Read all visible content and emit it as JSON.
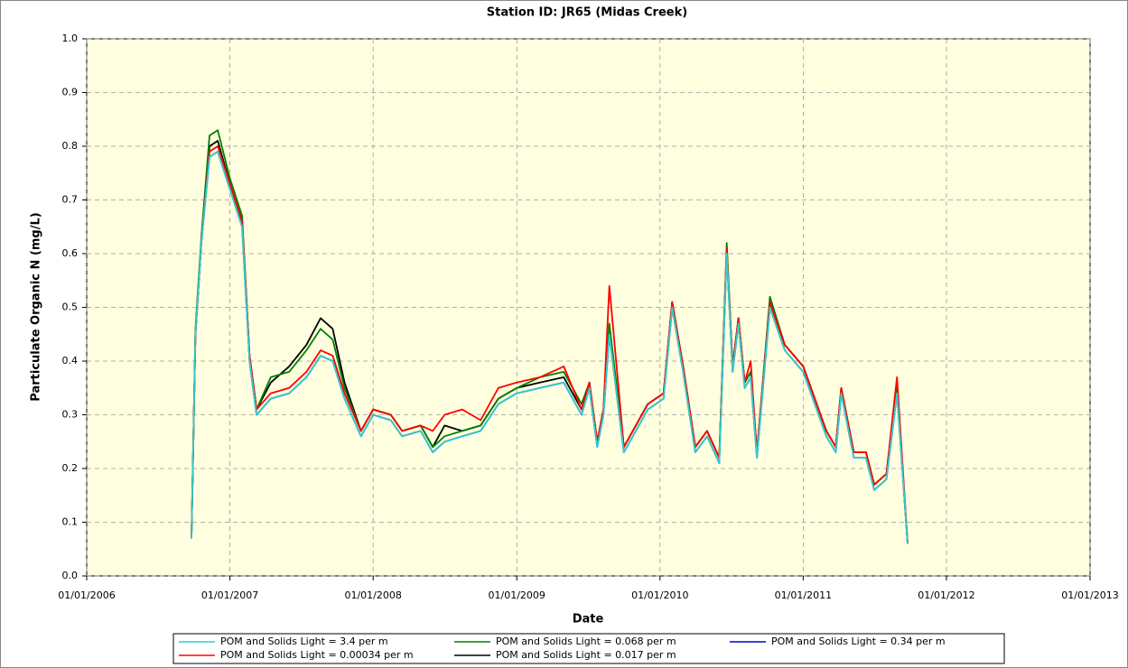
{
  "chart_data": {
    "type": "line",
    "title": "Station ID: JR65 (Midas Creek)",
    "x_label": "Date",
    "y_label": "Particulate Organic N  (mg/L)",
    "x": [
      "09/25/2006",
      "10/05/2006",
      "10/20/2006",
      "11/10/2006",
      "12/01/2006",
      "01/01/2007",
      "02/01/2007",
      "02/20/2007",
      "03/10/2007",
      "04/15/2007",
      "06/01/2007",
      "07/15/2007",
      "08/20/2007",
      "09/20/2007",
      "10/20/2007",
      "12/01/2007",
      "01/01/2008",
      "02/15/2008",
      "03/15/2008",
      "05/01/2008",
      "06/01/2008",
      "07/01/2008",
      "08/15/2008",
      "10/01/2008",
      "11/15/2008",
      "01/01/2009",
      "03/01/2009",
      "05/01/2009",
      "06/15/2009",
      "07/05/2009",
      "07/25/2009",
      "08/10/2009",
      "08/25/2009",
      "10/01/2009",
      "12/01/2009",
      "01/10/2010",
      "02/01/2010",
      "03/01/2010",
      "04/01/2010",
      "05/01/2010",
      "06/01/2010",
      "06/20/2010",
      "07/05/2010",
      "07/20/2010",
      "08/05/2010",
      "08/20/2010",
      "09/05/2010",
      "10/08/2010",
      "11/15/2010",
      "01/01/2011",
      "03/01/2011",
      "03/25/2011",
      "04/08/2011",
      "05/10/2011",
      "06/10/2011",
      "07/01/2011",
      "08/01/2011",
      "08/28/2011",
      "09/24/2011"
    ],
    "series": [
      {
        "name": "POM and Solids Light = 3.4 per m",
        "color": "#33cccc",
        "values": [
          0.07,
          0.45,
          0.62,
          0.78,
          0.79,
          0.72,
          0.65,
          0.4,
          0.3,
          0.33,
          0.34,
          0.37,
          0.41,
          0.4,
          0.33,
          0.26,
          0.3,
          0.29,
          0.26,
          0.27,
          0.23,
          0.25,
          0.26,
          0.27,
          0.32,
          0.34,
          0.35,
          0.36,
          0.3,
          0.35,
          0.24,
          0.3,
          0.45,
          0.23,
          0.31,
          0.33,
          0.5,
          0.38,
          0.23,
          0.26,
          0.21,
          0.6,
          0.38,
          0.47,
          0.35,
          0.37,
          0.22,
          0.5,
          0.42,
          0.38,
          0.26,
          0.23,
          0.34,
          0.22,
          0.22,
          0.16,
          0.18,
          0.34,
          0.06
        ]
      },
      {
        "name": "POM and Solids Light = 0.00034 per m",
        "color": "#ff0000",
        "values": [
          0.07,
          0.45,
          0.62,
          0.79,
          0.8,
          0.73,
          0.66,
          0.41,
          0.31,
          0.34,
          0.35,
          0.38,
          0.42,
          0.41,
          0.34,
          0.27,
          0.31,
          0.3,
          0.27,
          0.28,
          0.27,
          0.3,
          0.31,
          0.29,
          0.35,
          0.36,
          0.37,
          0.39,
          0.31,
          0.36,
          0.25,
          0.31,
          0.54,
          0.24,
          0.32,
          0.34,
          0.51,
          0.39,
          0.24,
          0.27,
          0.22,
          0.61,
          0.39,
          0.48,
          0.36,
          0.4,
          0.23,
          0.51,
          0.43,
          0.39,
          0.27,
          0.24,
          0.35,
          0.23,
          0.23,
          0.17,
          0.19,
          0.37,
          0.06
        ]
      },
      {
        "name": "POM and Solids Light = 0.068 per m",
        "color": "#008000",
        "values": [
          0.07,
          0.46,
          0.63,
          0.82,
          0.83,
          0.74,
          0.67,
          0.41,
          0.31,
          0.37,
          0.38,
          0.42,
          0.46,
          0.44,
          0.35,
          0.27,
          0.31,
          0.3,
          0.27,
          0.28,
          0.24,
          0.26,
          0.27,
          0.28,
          0.33,
          0.35,
          0.37,
          0.38,
          0.32,
          0.36,
          0.25,
          0.31,
          0.47,
          0.24,
          0.32,
          0.34,
          0.51,
          0.39,
          0.24,
          0.27,
          0.22,
          0.62,
          0.39,
          0.48,
          0.36,
          0.38,
          0.23,
          0.52,
          0.43,
          0.39,
          0.27,
          0.24,
          0.35,
          0.23,
          0.23,
          0.17,
          0.19,
          0.35,
          0.06
        ]
      },
      {
        "name": "POM and Solids Light = 0.017 per m",
        "color": "#000000",
        "values": [
          0.07,
          0.45,
          0.62,
          0.8,
          0.81,
          0.73,
          0.66,
          0.41,
          0.31,
          0.36,
          0.39,
          0.43,
          0.48,
          0.46,
          0.36,
          0.27,
          0.31,
          0.3,
          0.27,
          0.28,
          0.24,
          0.28,
          0.27,
          0.28,
          0.33,
          0.35,
          0.36,
          0.37,
          0.31,
          0.36,
          0.25,
          0.31,
          0.46,
          0.24,
          0.32,
          0.34,
          0.51,
          0.39,
          0.24,
          0.27,
          0.22,
          0.61,
          0.39,
          0.48,
          0.36,
          0.38,
          0.23,
          0.51,
          0.43,
          0.39,
          0.27,
          0.24,
          0.35,
          0.23,
          0.23,
          0.17,
          0.19,
          0.35,
          0.06
        ]
      },
      {
        "name": "POM and Solids Light = 0.34 per m",
        "color": "#0000cc",
        "values": [
          0.07,
          0.45,
          0.62,
          0.78,
          0.79,
          0.72,
          0.65,
          0.4,
          0.3,
          0.33,
          0.34,
          0.37,
          0.41,
          0.4,
          0.33,
          0.26,
          0.3,
          0.29,
          0.26,
          0.27,
          0.23,
          0.25,
          0.26,
          0.27,
          0.32,
          0.34,
          0.35,
          0.36,
          0.3,
          0.35,
          0.24,
          0.3,
          0.45,
          0.23,
          0.31,
          0.33,
          0.5,
          0.38,
          0.23,
          0.26,
          0.21,
          0.6,
          0.38,
          0.47,
          0.35,
          0.37,
          0.22,
          0.5,
          0.42,
          0.38,
          0.26,
          0.23,
          0.34,
          0.22,
          0.22,
          0.16,
          0.18,
          0.34,
          0.06
        ]
      }
    ],
    "xlim": [
      "01/01/2006",
      "01/01/2013"
    ],
    "xticks": [
      "01/01/2006",
      "01/01/2007",
      "01/01/2008",
      "01/01/2009",
      "01/01/2010",
      "01/01/2011",
      "01/01/2012",
      "01/01/2013"
    ],
    "ylim": [
      0,
      1
    ],
    "yticks": [
      {
        "value": 0,
        "label": "0.0"
      },
      0.1,
      0.2,
      0.3,
      0.4,
      0.5,
      0.6,
      0.7,
      0.8,
      0.9,
      {
        "value": 1,
        "label": "1.0"
      }
    ],
    "grid": true,
    "legend": "bottom"
  }
}
